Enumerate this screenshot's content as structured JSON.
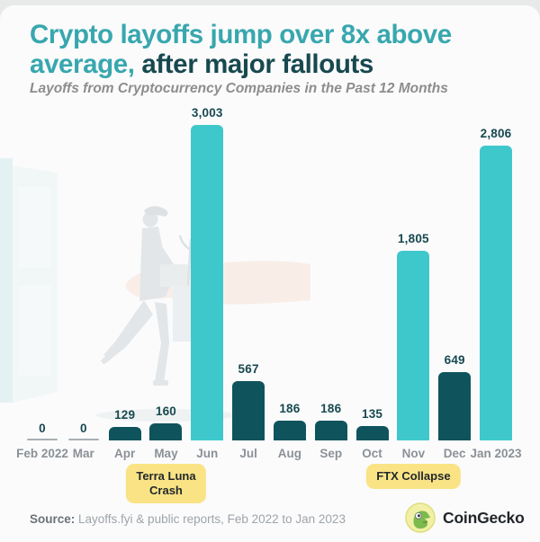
{
  "header": {
    "title_line1": "Crypto layoffs jump over 8x above",
    "title_line2_accent": "average,",
    "title_line2_rest": " after major fallouts",
    "subtitle": "Layoffs from Cryptocurrency Companies in the Past 12 Months"
  },
  "colors": {
    "title_accent": "#38A7AE",
    "title_dark": "#17494F",
    "bar_spike": "#3FC8CC",
    "bar_normal": "#0F545C",
    "zero_line": "#A8AFB3",
    "annotation_bg": "#FAE385",
    "month_label": "#8B9196"
  },
  "chart_data": {
    "type": "bar",
    "title": "Layoffs from Cryptocurrency Companies in the Past 12 Months",
    "categories": [
      "Feb 2022",
      "Mar",
      "Apr",
      "May",
      "Jun",
      "Jul",
      "Aug",
      "Sep",
      "Oct",
      "Nov",
      "Dec",
      "Jan 2023"
    ],
    "values": [
      0,
      0,
      129,
      160,
      3003,
      567,
      186,
      186,
      135,
      1805,
      649,
      2806
    ],
    "value_labels": [
      "0",
      "0",
      "129",
      "160",
      "3,003",
      "567",
      "186",
      "186",
      "135",
      "1,805",
      "649",
      "2,806"
    ],
    "bar_styles": [
      "zero",
      "zero",
      "normal",
      "normal",
      "spike",
      "normal",
      "normal",
      "normal",
      "normal",
      "spike",
      "normal",
      "spike"
    ],
    "xlabel": "",
    "ylabel": "",
    "ylim": [
      0,
      3100
    ],
    "grid": false,
    "legend": "none",
    "annotations": [
      {
        "lines": [
          "Terra Luna",
          "Crash"
        ],
        "anchor_category": "May"
      },
      {
        "lines": [
          "FTX Collapse"
        ],
        "anchor_category": "Nov"
      }
    ]
  },
  "footer": {
    "source_label": "Source:",
    "source_text": " Layoffs.fyi & public reports, Feb 2022 to Jan 2023",
    "brand_name": "CoinGecko"
  },
  "illustration": "laid-off-worker-carrying-box-out-open-door"
}
